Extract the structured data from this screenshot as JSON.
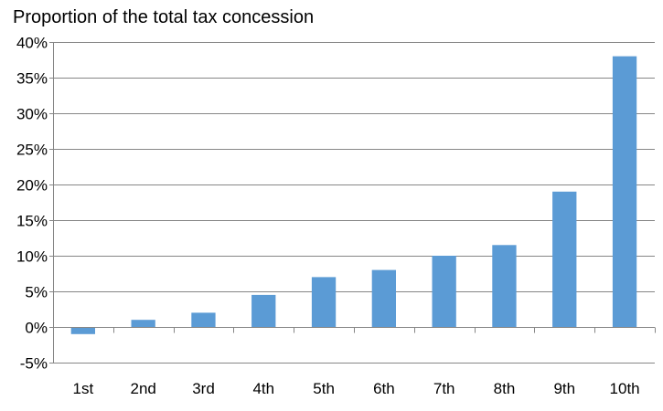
{
  "chart_data": {
    "type": "bar",
    "title": "Proportion of the total tax concession",
    "xlabel": "",
    "ylabel": "",
    "categories": [
      "1st",
      "2nd",
      "3rd",
      "4th",
      "5th",
      "6th",
      "7th",
      "8th",
      "9th",
      "10th"
    ],
    "values": [
      -1,
      1,
      2,
      4.5,
      7,
      8,
      10,
      11.5,
      19,
      38
    ],
    "ylim": [
      -5,
      40
    ],
    "yticks": [
      -5,
      0,
      5,
      10,
      15,
      20,
      25,
      30,
      35,
      40
    ],
    "ytick_labels": [
      "-5%",
      "0%",
      "5%",
      "10%",
      "15%",
      "20%",
      "25%",
      "30%",
      "35%",
      "40%"
    ],
    "grid": true,
    "legend": "none",
    "colors": {
      "bar": "#5b9bd5",
      "grid": "#868686",
      "axis": "#868686"
    }
  }
}
